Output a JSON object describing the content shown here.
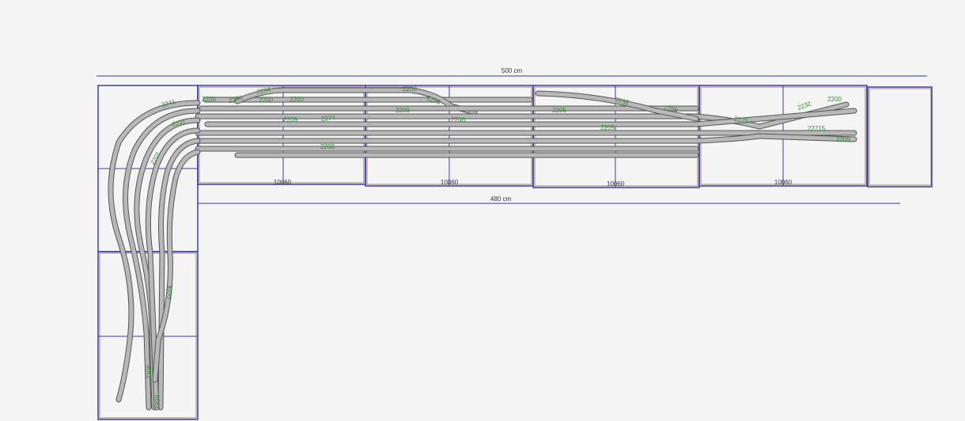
{
  "dimensions": [
    {
      "label": "500 cm"
    },
    {
      "label": "480 cm"
    }
  ],
  "modules": [
    {
      "label": "10060"
    },
    {
      "label": "10060"
    },
    {
      "label": "10060"
    },
    {
      "label": "10060"
    }
  ],
  "track_labels": [
    {
      "text": "2200"
    },
    {
      "text": "2256"
    },
    {
      "text": "2234"
    },
    {
      "text": "2200"
    },
    {
      "text": "2209"
    },
    {
      "text": "2274"
    },
    {
      "text": "2208"
    },
    {
      "text": "2200"
    },
    {
      "text": "2209"
    },
    {
      "text": "2230"
    },
    {
      "text": "2200"
    },
    {
      "text": "2206"
    },
    {
      "text": "2205"
    },
    {
      "text": "2238"
    },
    {
      "text": "2256"
    },
    {
      "text": "2205"
    },
    {
      "text": "2275"
    },
    {
      "text": "2232"
    },
    {
      "text": "2200"
    },
    {
      "text": "22715"
    },
    {
      "text": "2209"
    },
    {
      "text": "2241"
    },
    {
      "text": "2231"
    },
    {
      "text": "2201"
    },
    {
      "text": "2274"
    },
    {
      "text": "2200"
    },
    {
      "text": "2206"
    }
  ]
}
